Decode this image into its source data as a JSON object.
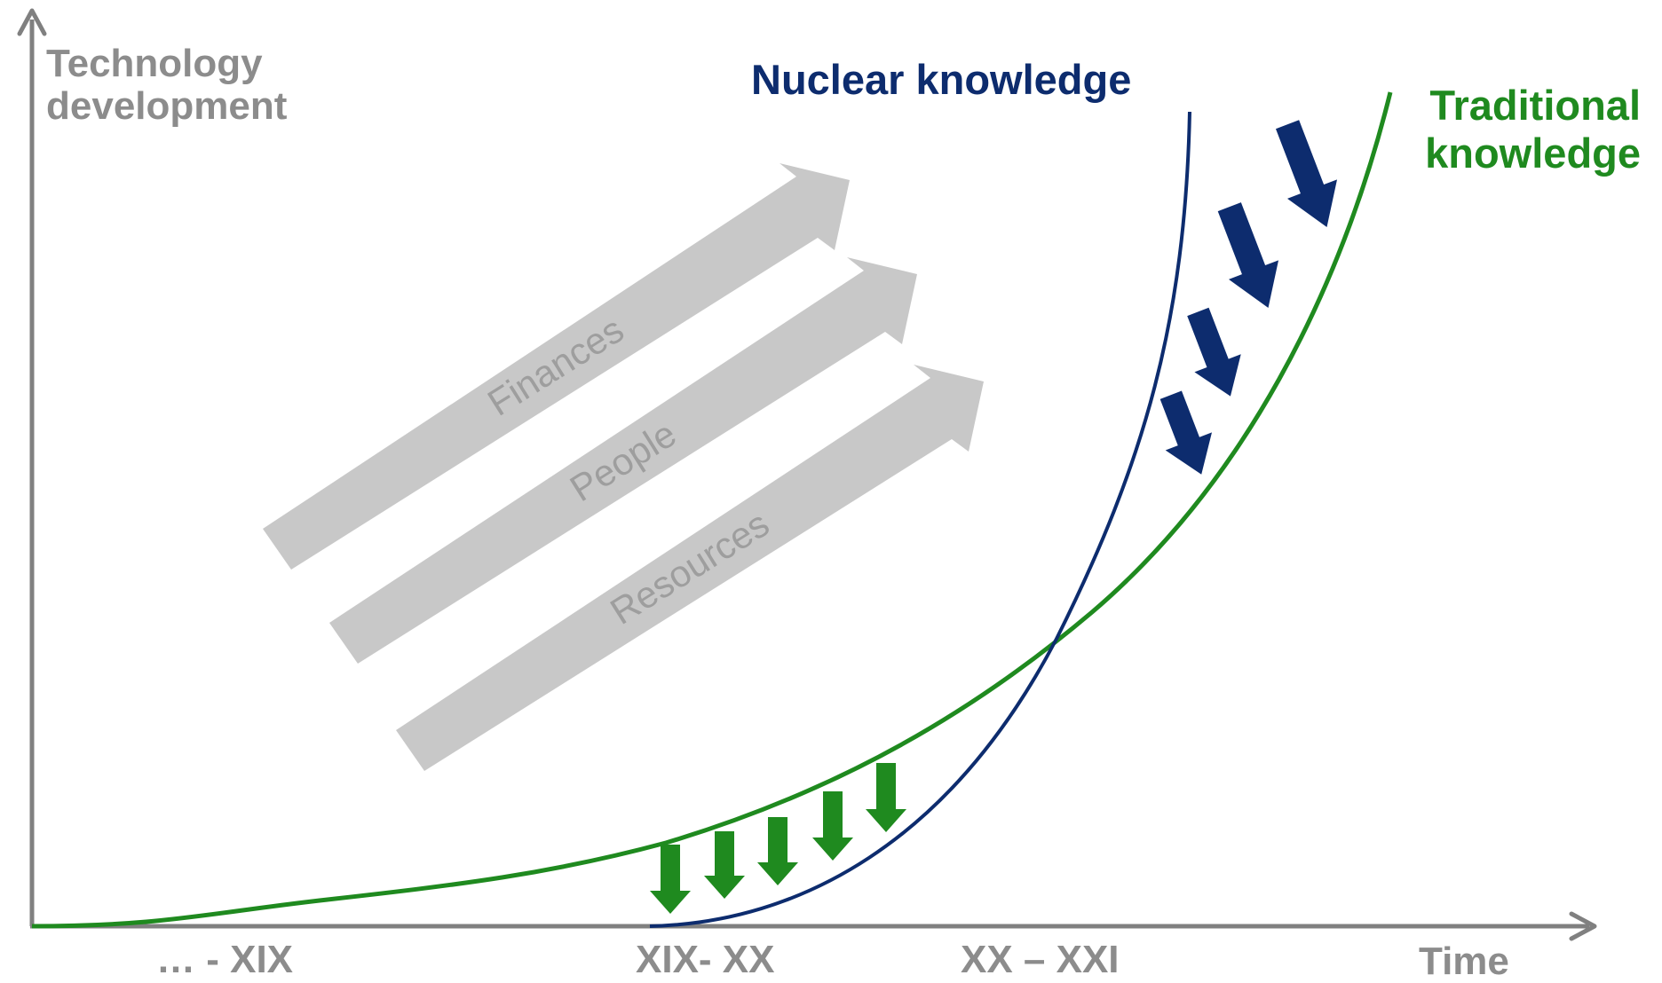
{
  "axes": {
    "y_title_lines": [
      "Technology",
      "development"
    ],
    "x_title": "Time",
    "x_ticks": [
      "… - XIX",
      "XIX- XX",
      "XX – XXI"
    ]
  },
  "curves": {
    "nuclear": {
      "label": "Nuclear knowledge",
      "color": "#0d2c6e"
    },
    "traditional": {
      "label_lines": [
        "Traditional",
        "knowledge"
      ],
      "color": "#1f8a1f"
    }
  },
  "bands": [
    {
      "label": "Finances"
    },
    {
      "label": "People"
    },
    {
      "label": "Resources"
    }
  ],
  "colors": {
    "axis": "#808080",
    "band_fill": "#c8c8c8",
    "band_text": "#9e9e9e",
    "green_arrow": "#1f8a1f",
    "blue_arrow": "#0d2c6e"
  }
}
